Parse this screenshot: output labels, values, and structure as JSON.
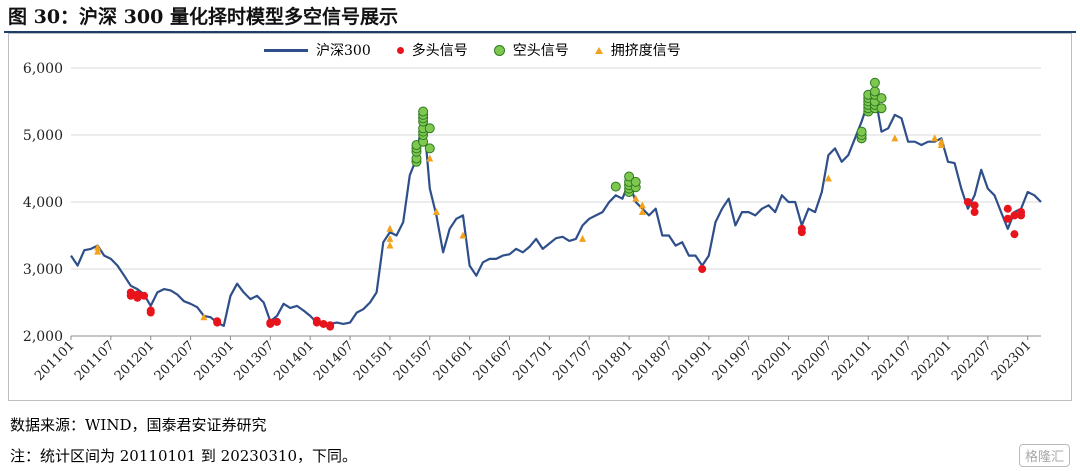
{
  "figure_title": "图 30：沪深 300 量化择时模型多空信号展示",
  "source_text": "数据来源：WIND，国泰君安证券研究",
  "note_text": "注：统计区间为 20110101 到 20230310，下同。",
  "watermark": "格隆汇",
  "colors": {
    "line": "#2e4f8a",
    "long_signal": "#e8141b",
    "short_signal": "#7ec850",
    "short_signal_border": "#2f7a22",
    "crowding_signal": "#f2a21b",
    "title_rule": "#1c3f6e"
  },
  "chart_data": {
    "type": "line",
    "legend_placement": "top-center",
    "grid": true,
    "ylim": [
      2000,
      6000
    ],
    "yticks": [
      "2,000",
      "3,000",
      "4,000",
      "5,000",
      "6,000"
    ],
    "xticks": [
      "201101",
      "201107",
      "201201",
      "201207",
      "201301",
      "201307",
      "201401",
      "201407",
      "201501",
      "201507",
      "201601",
      "201607",
      "201701",
      "201707",
      "201801",
      "201807",
      "201901",
      "201907",
      "202001",
      "202007",
      "202101",
      "202107",
      "202201",
      "202207",
      "202301"
    ],
    "xrange": [
      "2011-01",
      "2023-03"
    ],
    "series": [
      {
        "name": "沪深300",
        "points": [
          [
            "2011-01",
            3200
          ],
          [
            "2011-02",
            3050
          ],
          [
            "2011-03",
            3280
          ],
          [
            "2011-04",
            3300
          ],
          [
            "2011-05",
            3350
          ],
          [
            "2011-06",
            3200
          ],
          [
            "2011-07",
            3150
          ],
          [
            "2011-08",
            3050
          ],
          [
            "2011-09",
            2900
          ],
          [
            "2011-10",
            2750
          ],
          [
            "2011-11",
            2700
          ],
          [
            "2011-12",
            2620
          ],
          [
            "2012-01",
            2450
          ],
          [
            "2012-02",
            2650
          ],
          [
            "2012-03",
            2700
          ],
          [
            "2012-04",
            2680
          ],
          [
            "2012-05",
            2620
          ],
          [
            "2012-06",
            2520
          ],
          [
            "2012-07",
            2480
          ],
          [
            "2012-08",
            2430
          ],
          [
            "2012-09",
            2300
          ],
          [
            "2012-10",
            2280
          ],
          [
            "2012-11",
            2200
          ],
          [
            "2012-12",
            2150
          ],
          [
            "2013-01",
            2600
          ],
          [
            "2013-02",
            2780
          ],
          [
            "2013-03",
            2650
          ],
          [
            "2013-04",
            2550
          ],
          [
            "2013-05",
            2600
          ],
          [
            "2013-06",
            2500
          ],
          [
            "2013-07",
            2220
          ],
          [
            "2013-08",
            2300
          ],
          [
            "2013-09",
            2480
          ],
          [
            "2013-10",
            2420
          ],
          [
            "2013-11",
            2450
          ],
          [
            "2013-12",
            2380
          ],
          [
            "2014-01",
            2300
          ],
          [
            "2014-02",
            2200
          ],
          [
            "2014-03",
            2180
          ],
          [
            "2014-04",
            2180
          ],
          [
            "2014-05",
            2200
          ],
          [
            "2014-06",
            2180
          ],
          [
            "2014-07",
            2200
          ],
          [
            "2014-08",
            2350
          ],
          [
            "2014-09",
            2400
          ],
          [
            "2014-10",
            2500
          ],
          [
            "2014-11",
            2650
          ],
          [
            "2014-12",
            3400
          ],
          [
            "2015-01",
            3550
          ],
          [
            "2015-02",
            3500
          ],
          [
            "2015-03",
            3700
          ],
          [
            "2015-04",
            4400
          ],
          [
            "2015-05",
            4650
          ],
          [
            "2015-06",
            5350
          ],
          [
            "2015-07",
            4200
          ],
          [
            "2015-08",
            3800
          ],
          [
            "2015-09",
            3250
          ],
          [
            "2015-10",
            3600
          ],
          [
            "2015-11",
            3750
          ],
          [
            "2015-12",
            3800
          ],
          [
            "2016-01",
            3050
          ],
          [
            "2016-02",
            2900
          ],
          [
            "2016-03",
            3100
          ],
          [
            "2016-04",
            3150
          ],
          [
            "2016-05",
            3150
          ],
          [
            "2016-06",
            3200
          ],
          [
            "2016-07",
            3220
          ],
          [
            "2016-08",
            3300
          ],
          [
            "2016-09",
            3250
          ],
          [
            "2016-10",
            3330
          ],
          [
            "2016-11",
            3450
          ],
          [
            "2016-12",
            3300
          ],
          [
            "2017-01",
            3380
          ],
          [
            "2017-02",
            3460
          ],
          [
            "2017-03",
            3480
          ],
          [
            "2017-04",
            3420
          ],
          [
            "2017-05",
            3450
          ],
          [
            "2017-06",
            3650
          ],
          [
            "2017-07",
            3750
          ],
          [
            "2017-08",
            3800
          ],
          [
            "2017-09",
            3850
          ],
          [
            "2017-10",
            4000
          ],
          [
            "2017-11",
            4100
          ],
          [
            "2017-12",
            4050
          ],
          [
            "2018-01",
            4300
          ],
          [
            "2018-02",
            4000
          ],
          [
            "2018-03",
            3900
          ],
          [
            "2018-04",
            3800
          ],
          [
            "2018-05",
            3900
          ],
          [
            "2018-06",
            3500
          ],
          [
            "2018-07",
            3500
          ],
          [
            "2018-08",
            3350
          ],
          [
            "2018-09",
            3400
          ],
          [
            "2018-10",
            3200
          ],
          [
            "2018-11",
            3200
          ],
          [
            "2018-12",
            3050
          ],
          [
            "2019-01",
            3200
          ],
          [
            "2019-02",
            3700
          ],
          [
            "2019-03",
            3900
          ],
          [
            "2019-04",
            4050
          ],
          [
            "2019-05",
            3650
          ],
          [
            "2019-06",
            3850
          ],
          [
            "2019-07",
            3850
          ],
          [
            "2019-08",
            3800
          ],
          [
            "2019-09",
            3900
          ],
          [
            "2019-10",
            3950
          ],
          [
            "2019-11",
            3850
          ],
          [
            "2019-12",
            4100
          ],
          [
            "2020-01",
            4000
          ],
          [
            "2020-02",
            4000
          ],
          [
            "2020-03",
            3650
          ],
          [
            "2020-04",
            3900
          ],
          [
            "2020-05",
            3850
          ],
          [
            "2020-06",
            4150
          ],
          [
            "2020-07",
            4700
          ],
          [
            "2020-08",
            4800
          ],
          [
            "2020-09",
            4600
          ],
          [
            "2020-10",
            4700
          ],
          [
            "2020-11",
            4950
          ],
          [
            "2020-12",
            5200
          ],
          [
            "2021-01",
            5500
          ],
          [
            "2021-02",
            5600
          ],
          [
            "2021-03",
            5050
          ],
          [
            "2021-04",
            5100
          ],
          [
            "2021-05",
            5300
          ],
          [
            "2021-06",
            5250
          ],
          [
            "2021-07",
            4900
          ],
          [
            "2021-08",
            4900
          ],
          [
            "2021-09",
            4850
          ],
          [
            "2021-10",
            4900
          ],
          [
            "2021-11",
            4900
          ],
          [
            "2021-12",
            4950
          ],
          [
            "2022-01",
            4600
          ],
          [
            "2022-02",
            4580
          ],
          [
            "2022-03",
            4200
          ],
          [
            "2022-04",
            3900
          ],
          [
            "2022-05",
            4100
          ],
          [
            "2022-06",
            4480
          ],
          [
            "2022-07",
            4200
          ],
          [
            "2022-08",
            4100
          ],
          [
            "2022-09",
            3850
          ],
          [
            "2022-10",
            3600
          ],
          [
            "2022-11",
            3850
          ],
          [
            "2022-12",
            3900
          ],
          [
            "2023-01",
            4150
          ],
          [
            "2023-02",
            4100
          ],
          [
            "2023-03",
            4000
          ]
        ]
      }
    ],
    "signals": [
      {
        "name": "多头信号",
        "points": [
          [
            "2011-10",
            2650
          ],
          [
            "2011-10",
            2600
          ],
          [
            "2011-11",
            2620
          ],
          [
            "2011-11",
            2570
          ],
          [
            "2011-12",
            2600
          ],
          [
            "2012-01",
            2380
          ],
          [
            "2012-01",
            2350
          ],
          [
            "2012-11",
            2220
          ],
          [
            "2012-11",
            2200
          ],
          [
            "2013-07",
            2200
          ],
          [
            "2013-07",
            2180
          ],
          [
            "2013-08",
            2210
          ],
          [
            "2014-02",
            2230
          ],
          [
            "2014-02",
            2200
          ],
          [
            "2014-03",
            2180
          ],
          [
            "2014-04",
            2160
          ],
          [
            "2014-04",
            2140
          ],
          [
            "2018-12",
            3000
          ],
          [
            "2020-03",
            3600
          ],
          [
            "2020-03",
            3550
          ],
          [
            "2022-04",
            4000
          ],
          [
            "2022-05",
            3950
          ],
          [
            "2022-05",
            3850
          ],
          [
            "2022-10",
            3900
          ],
          [
            "2022-10",
            3750
          ],
          [
            "2022-11",
            3800
          ],
          [
            "2022-11",
            3520
          ],
          [
            "2022-12",
            3800
          ],
          [
            "2022-12",
            3850
          ]
        ]
      },
      {
        "name": "空头信号",
        "points": [
          [
            "2015-05",
            4600
          ],
          [
            "2015-05",
            4650
          ],
          [
            "2015-05",
            4750
          ],
          [
            "2015-05",
            4800
          ],
          [
            "2015-05",
            4850
          ],
          [
            "2015-06",
            4900
          ],
          [
            "2015-06",
            5000
          ],
          [
            "2015-06",
            5050
          ],
          [
            "2015-06",
            5100
          ],
          [
            "2015-06",
            5200
          ],
          [
            "2015-06",
            5250
          ],
          [
            "2015-06",
            5300
          ],
          [
            "2015-06",
            5350
          ],
          [
            "2015-07",
            4800
          ],
          [
            "2015-07",
            5100
          ],
          [
            "2017-11",
            4230
          ],
          [
            "2018-01",
            4150
          ],
          [
            "2018-01",
            4200
          ],
          [
            "2018-01",
            4250
          ],
          [
            "2018-01",
            4300
          ],
          [
            "2018-01",
            4380
          ],
          [
            "2018-02",
            4220
          ],
          [
            "2018-02",
            4300
          ],
          [
            "2020-12",
            4950
          ],
          [
            "2020-12",
            5000
          ],
          [
            "2020-12",
            5050
          ],
          [
            "2021-01",
            5350
          ],
          [
            "2021-01",
            5400
          ],
          [
            "2021-01",
            5450
          ],
          [
            "2021-01",
            5500
          ],
          [
            "2021-01",
            5550
          ],
          [
            "2021-01",
            5600
          ],
          [
            "2021-02",
            5400
          ],
          [
            "2021-02",
            5450
          ],
          [
            "2021-02",
            5500
          ],
          [
            "2021-02",
            5600
          ],
          [
            "2021-02",
            5650
          ],
          [
            "2021-02",
            5780
          ],
          [
            "2021-03",
            5400
          ],
          [
            "2021-03",
            5550
          ]
        ]
      },
      {
        "name": "拥挤度信号",
        "points": [
          [
            "2011-05",
            3320
          ],
          [
            "2011-05",
            3260
          ],
          [
            "2012-09",
            2280
          ],
          [
            "2015-01",
            3600
          ],
          [
            "2015-01",
            3450
          ],
          [
            "2015-01",
            3350
          ],
          [
            "2015-07",
            4650
          ],
          [
            "2015-08",
            3850
          ],
          [
            "2015-12",
            3500
          ],
          [
            "2017-06",
            3450
          ],
          [
            "2018-02",
            4050
          ],
          [
            "2018-03",
            3950
          ],
          [
            "2018-03",
            3850
          ],
          [
            "2020-07",
            4350
          ],
          [
            "2021-05",
            4950
          ],
          [
            "2021-11",
            4950
          ],
          [
            "2021-12",
            4900
          ],
          [
            "2021-12",
            4850
          ]
        ]
      }
    ]
  }
}
